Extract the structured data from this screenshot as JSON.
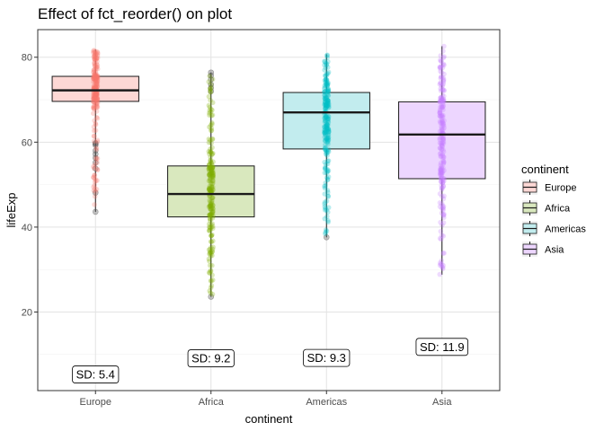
{
  "chart_data": {
    "type": "boxplot",
    "title": "Effect of fct_reorder() on plot",
    "xlabel": "continent",
    "ylabel": "lifeExp",
    "ylim": [
      1.5,
      86.5
    ],
    "yticks": [
      20,
      40,
      60,
      80
    ],
    "grid": true,
    "legend": {
      "title": "continent",
      "placement": "right"
    },
    "categories": [
      "Europe",
      "Africa",
      "Americas",
      "Asia"
    ],
    "series": [
      {
        "name": "Europe",
        "color": "#F8766D",
        "fill": "#FDD8D5",
        "min": 43.6,
        "q1": 69.6,
        "median": 72.2,
        "q3": 75.5,
        "max": 81.8,
        "outliers": [
          43.6,
          48.1,
          53.8,
          55.2,
          56.3,
          57.2,
          58.0,
          59.3,
          59.6,
          59.8
        ],
        "sd_label": "SD:  5.4",
        "sd_y": 5.4
      },
      {
        "name": "Africa",
        "color": "#7CAE00",
        "fill": "#D9E8BE",
        "min": 23.6,
        "q1": 42.4,
        "median": 47.8,
        "q3": 54.4,
        "max": 76.4,
        "outliers": [
          23.6,
          72.0,
          72.8,
          73.6,
          74.8,
          75.7,
          76.4
        ],
        "sd_label": "SD:  9.2",
        "sd_y": 9.2
      },
      {
        "name": "Americas",
        "color": "#00BFC4",
        "fill": "#C2ECEE",
        "min": 37.6,
        "q1": 58.4,
        "median": 67.0,
        "q3": 71.7,
        "max": 80.7,
        "outliers": [
          37.6
        ],
        "sd_label": "SD:  9.3",
        "sd_y": 9.3
      },
      {
        "name": "Asia",
        "color": "#C77CFF",
        "fill": "#EDD6FF",
        "min": 28.8,
        "q1": 51.4,
        "median": 61.8,
        "q3": 69.5,
        "max": 82.6,
        "outliers": [],
        "sd_label": "SD:  11.9",
        "sd_y": 11.9
      }
    ]
  }
}
